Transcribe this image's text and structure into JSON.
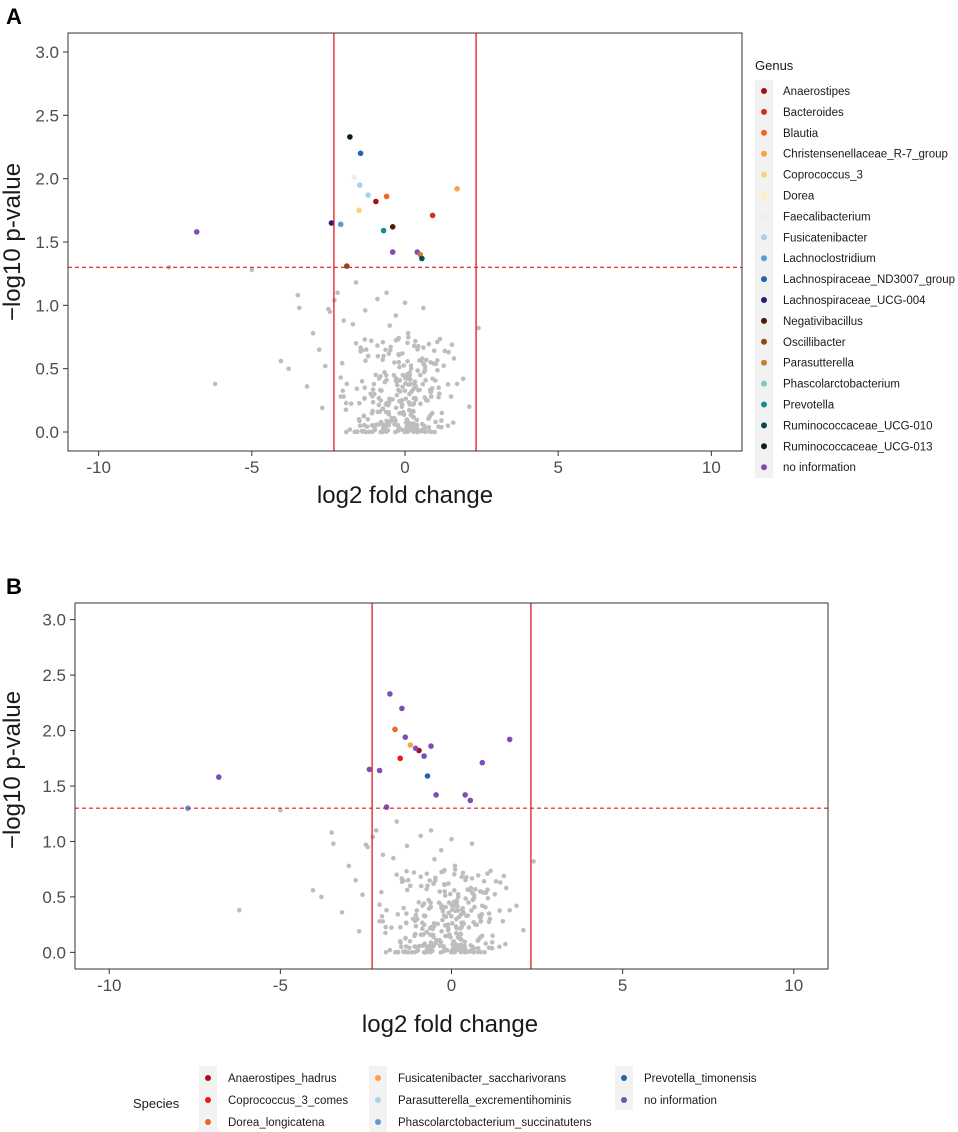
{
  "colors": {
    "nonsignificant": "#bdbdbd",
    "threshold_line": "#e41a1c",
    "panel_border": "#333333",
    "legend_bg": "#f2f2f2"
  },
  "chart_data": [
    {
      "panel": "A",
      "type": "scatter",
      "title": "",
      "xlabel": "log2 fold change",
      "ylabel": "−log10 p-value",
      "xlim": [
        -11,
        11
      ],
      "ylim": [
        -0.15,
        3.15
      ],
      "xticks": [
        -10,
        -5,
        0,
        5,
        10
      ],
      "xtick_labels": [
        "-10",
        "-5",
        "0",
        "5",
        "10"
      ],
      "yticks": [
        0.0,
        0.5,
        1.0,
        1.5,
        2.0,
        2.5,
        3.0
      ],
      "ytick_labels": [
        "0.0",
        "0.5",
        "1.0",
        "1.5",
        "2.0",
        "2.5",
        "3.0"
      ],
      "vlines": [
        -2.32,
        2.32
      ],
      "hline": 1.3,
      "legend": {
        "title": "Genus",
        "placement": "right",
        "entries": [
          {
            "label": "Anaerostipes",
            "color": "#a50f15"
          },
          {
            "label": "Bacteroides",
            "color": "#d7301f"
          },
          {
            "label": "Blautia",
            "color": "#f4622b"
          },
          {
            "label": "Christensenellaceae_R-7_group",
            "color": "#fca04f"
          },
          {
            "label": "Coprococcus_3",
            "color": "#fdd17b"
          },
          {
            "label": "Dorea",
            "color": "#fff2b3"
          },
          {
            "label": "Faecalibacterium",
            "color": "#e4f1f7"
          },
          {
            "label": "Fusicatenibacter",
            "color": "#a7d3e9"
          },
          {
            "label": "Lachnoclostridium",
            "color": "#5b9bd5"
          },
          {
            "label": "Lachnospiraceae_ND3007_group",
            "color": "#2166ac"
          },
          {
            "label": "Lachnospiraceae_UCG-004",
            "color": "#22207a"
          },
          {
            "label": "Negativibacillus",
            "color": "#4a1a0a"
          },
          {
            "label": "Oscillibacter",
            "color": "#8c4a1a"
          },
          {
            "label": "Parasutterella",
            "color": "#c6803a"
          },
          {
            "label": "Phascolarctobacterium",
            "color": "#86c3cc"
          },
          {
            "label": "Prevotella",
            "color": "#1a8c8c"
          },
          {
            "label": "Ruminococcaceae_UCG-010",
            "color": "#0b4a4a"
          },
          {
            "label": "Ruminococcaceae_UCG-013",
            "color": "#0a2020"
          },
          {
            "label": "no information",
            "color": "#7b4fb5"
          }
        ]
      },
      "significant_points": [
        {
          "x": -1.8,
          "y": 2.33,
          "group": "Ruminococcaceae_UCG-013"
        },
        {
          "x": -1.45,
          "y": 2.2,
          "group": "Lachnospiraceae_ND3007_group"
        },
        {
          "x": -1.65,
          "y": 2.01,
          "group": "Faecalibacterium"
        },
        {
          "x": -1.48,
          "y": 1.95,
          "group": "Fusicatenibacter"
        },
        {
          "x": -1.2,
          "y": 1.87,
          "group": "Fusicatenibacter"
        },
        {
          "x": -0.6,
          "y": 1.86,
          "group": "Blautia"
        },
        {
          "x": -0.95,
          "y": 1.82,
          "group": "Anaerostipes"
        },
        {
          "x": -1.5,
          "y": 1.75,
          "group": "Coprococcus_3"
        },
        {
          "x": 1.7,
          "y": 1.92,
          "group": "Christensenellaceae_R-7_group"
        },
        {
          "x": 0.9,
          "y": 1.71,
          "group": "Bacteroides"
        },
        {
          "x": -2.4,
          "y": 1.65,
          "group": "Lachnospiraceae_UCG-004"
        },
        {
          "x": -2.1,
          "y": 1.64,
          "group": "Lachnoclostridium"
        },
        {
          "x": -0.4,
          "y": 1.62,
          "group": "Negativibacillus"
        },
        {
          "x": -0.7,
          "y": 1.59,
          "group": "Prevotella"
        },
        {
          "x": -6.8,
          "y": 1.58,
          "group": "no information"
        },
        {
          "x": -0.4,
          "y": 1.42,
          "group": "no information"
        },
        {
          "x": 0.4,
          "y": 1.42,
          "group": "no information"
        },
        {
          "x": 0.5,
          "y": 1.4,
          "group": "Parasutterella"
        },
        {
          "x": 0.55,
          "y": 1.37,
          "group": "Ruminococcaceae_UCG-010"
        },
        {
          "x": -1.9,
          "y": 1.31,
          "group": "Oscillibacter"
        }
      ]
    },
    {
      "panel": "B",
      "type": "scatter",
      "title": "",
      "xlabel": "log2 fold change",
      "ylabel": "−log10 p-value",
      "xlim": [
        -11,
        11
      ],
      "ylim": [
        -0.15,
        3.15
      ],
      "xticks": [
        -10,
        -5,
        0,
        5,
        10
      ],
      "xtick_labels": [
        "-10",
        "-5",
        "0",
        "5",
        "10"
      ],
      "yticks": [
        0.0,
        0.5,
        1.0,
        1.5,
        2.0,
        2.5,
        3.0
      ],
      "ytick_labels": [
        "0.0",
        "0.5",
        "1.0",
        "1.5",
        "2.0",
        "2.5",
        "3.0"
      ],
      "vlines": [
        -2.32,
        2.32
      ],
      "hline": 1.3,
      "legend": {
        "title": "Species",
        "placement": "bottom",
        "entries": [
          {
            "label": "Anaerostipes_hadrus",
            "color": "#a50f15"
          },
          {
            "label": "Coprococcus_3_comes",
            "color": "#e41a1c"
          },
          {
            "label": "Dorea_longicatena",
            "color": "#f4622b"
          },
          {
            "label": "Fusicatenibacter_saccharivorans",
            "color": "#fca04f"
          },
          {
            "label": "Parasutterella_excrementihominis",
            "color": "#a7d3e9"
          },
          {
            "label": "Phascolarctobacterium_succinatutens",
            "color": "#5b9bd5"
          },
          {
            "label": "Prevotella_timonensis",
            "color": "#2166ac"
          },
          {
            "label": "no information",
            "color": "#7b4fb5"
          }
        ]
      },
      "significant_points": [
        {
          "x": -1.8,
          "y": 2.33,
          "group": "no information"
        },
        {
          "x": -1.45,
          "y": 2.2,
          "group": "no information"
        },
        {
          "x": -1.65,
          "y": 2.01,
          "group": "Dorea_longicatena"
        },
        {
          "x": -1.35,
          "y": 1.94,
          "group": "no information"
        },
        {
          "x": -1.2,
          "y": 1.87,
          "group": "Fusicatenibacter_saccharivorans"
        },
        {
          "x": -0.6,
          "y": 1.86,
          "group": "no information"
        },
        {
          "x": -0.95,
          "y": 1.82,
          "group": "Anaerostipes_hadrus"
        },
        {
          "x": -1.05,
          "y": 1.84,
          "group": "no information"
        },
        {
          "x": -0.8,
          "y": 1.77,
          "group": "no information"
        },
        {
          "x": -1.5,
          "y": 1.75,
          "group": "Coprococcus_3_comes"
        },
        {
          "x": 1.7,
          "y": 1.92,
          "group": "no information"
        },
        {
          "x": 0.9,
          "y": 1.71,
          "group": "no information"
        },
        {
          "x": -2.4,
          "y": 1.65,
          "group": "no information"
        },
        {
          "x": -2.1,
          "y": 1.64,
          "group": "no information"
        },
        {
          "x": -0.7,
          "y": 1.59,
          "group": "Prevotella_timonensis"
        },
        {
          "x": -6.8,
          "y": 1.58,
          "group": "no information"
        },
        {
          "x": -0.45,
          "y": 1.42,
          "group": "no information"
        },
        {
          "x": 0.4,
          "y": 1.42,
          "group": "no information"
        },
        {
          "x": 0.55,
          "y": 1.37,
          "group": "no information"
        },
        {
          "x": -1.9,
          "y": 1.31,
          "group": "no information"
        },
        {
          "x": -7.7,
          "y": 1.3,
          "group": "Phascolarctobacterium_succinatutens"
        }
      ]
    }
  ],
  "background_points": [
    [
      -7.7,
      1.3
    ],
    [
      -5.0,
      1.28
    ],
    [
      -3.5,
      1.08
    ],
    [
      -3.45,
      0.98
    ],
    [
      -3.8,
      0.5
    ],
    [
      -6.2,
      0.38
    ],
    [
      -4.05,
      0.56
    ],
    [
      -3.0,
      0.78
    ],
    [
      -3.2,
      0.36
    ],
    [
      -2.8,
      0.65
    ],
    [
      -2.6,
      0.52
    ],
    [
      -2.7,
      0.19
    ],
    [
      -2.5,
      0.97
    ],
    [
      -2.45,
      0.95
    ],
    [
      -2.2,
      1.1
    ],
    [
      -2.3,
      1.04
    ],
    [
      -2.0,
      0.88
    ],
    [
      -2.1,
      0.43
    ],
    [
      -1.9,
      0.38
    ],
    [
      -1.6,
      1.18
    ],
    [
      -1.3,
      0.96
    ],
    [
      -1.1,
      0.72
    ],
    [
      -0.9,
      1.05
    ],
    [
      -0.7,
      0.6
    ],
    [
      -0.5,
      0.84
    ],
    [
      -0.3,
      0.92
    ],
    [
      0.1,
      0.78
    ],
    [
      0.3,
      0.68
    ],
    [
      0.6,
      0.54
    ],
    [
      0.9,
      0.42
    ],
    [
      1.1,
      0.35
    ],
    [
      1.5,
      0.28
    ],
    [
      1.7,
      0.38
    ],
    [
      1.9,
      0.42
    ],
    [
      2.4,
      0.82
    ],
    [
      1.2,
      0.15
    ],
    [
      0.8,
      0.12
    ],
    [
      -1.2,
      0.6
    ],
    [
      -1.4,
      0.4
    ],
    [
      -0.2,
      0.55
    ],
    [
      0.2,
      0.5
    ],
    [
      0.5,
      0.45
    ],
    [
      -0.8,
      0.44
    ],
    [
      -1.0,
      0.3
    ],
    [
      0.7,
      0.25
    ],
    [
      -0.1,
      0.2
    ],
    [
      1.0,
      0.08
    ],
    [
      -1.5,
      0.1
    ],
    [
      -1.8,
      0.02
    ],
    [
      0.4,
      0.03
    ],
    [
      1.4,
      0.05
    ],
    [
      -1.6,
      0.7
    ],
    [
      1.3,
      0.64
    ],
    [
      0.0,
      1.02
    ],
    [
      -0.6,
      1.1
    ],
    [
      0.6,
      0.98
    ],
    [
      -1.7,
      0.85
    ],
    [
      1.6,
      0.58
    ],
    [
      -2.1,
      0.28
    ],
    [
      2.1,
      0.2
    ]
  ],
  "cluster_seed": 7
}
